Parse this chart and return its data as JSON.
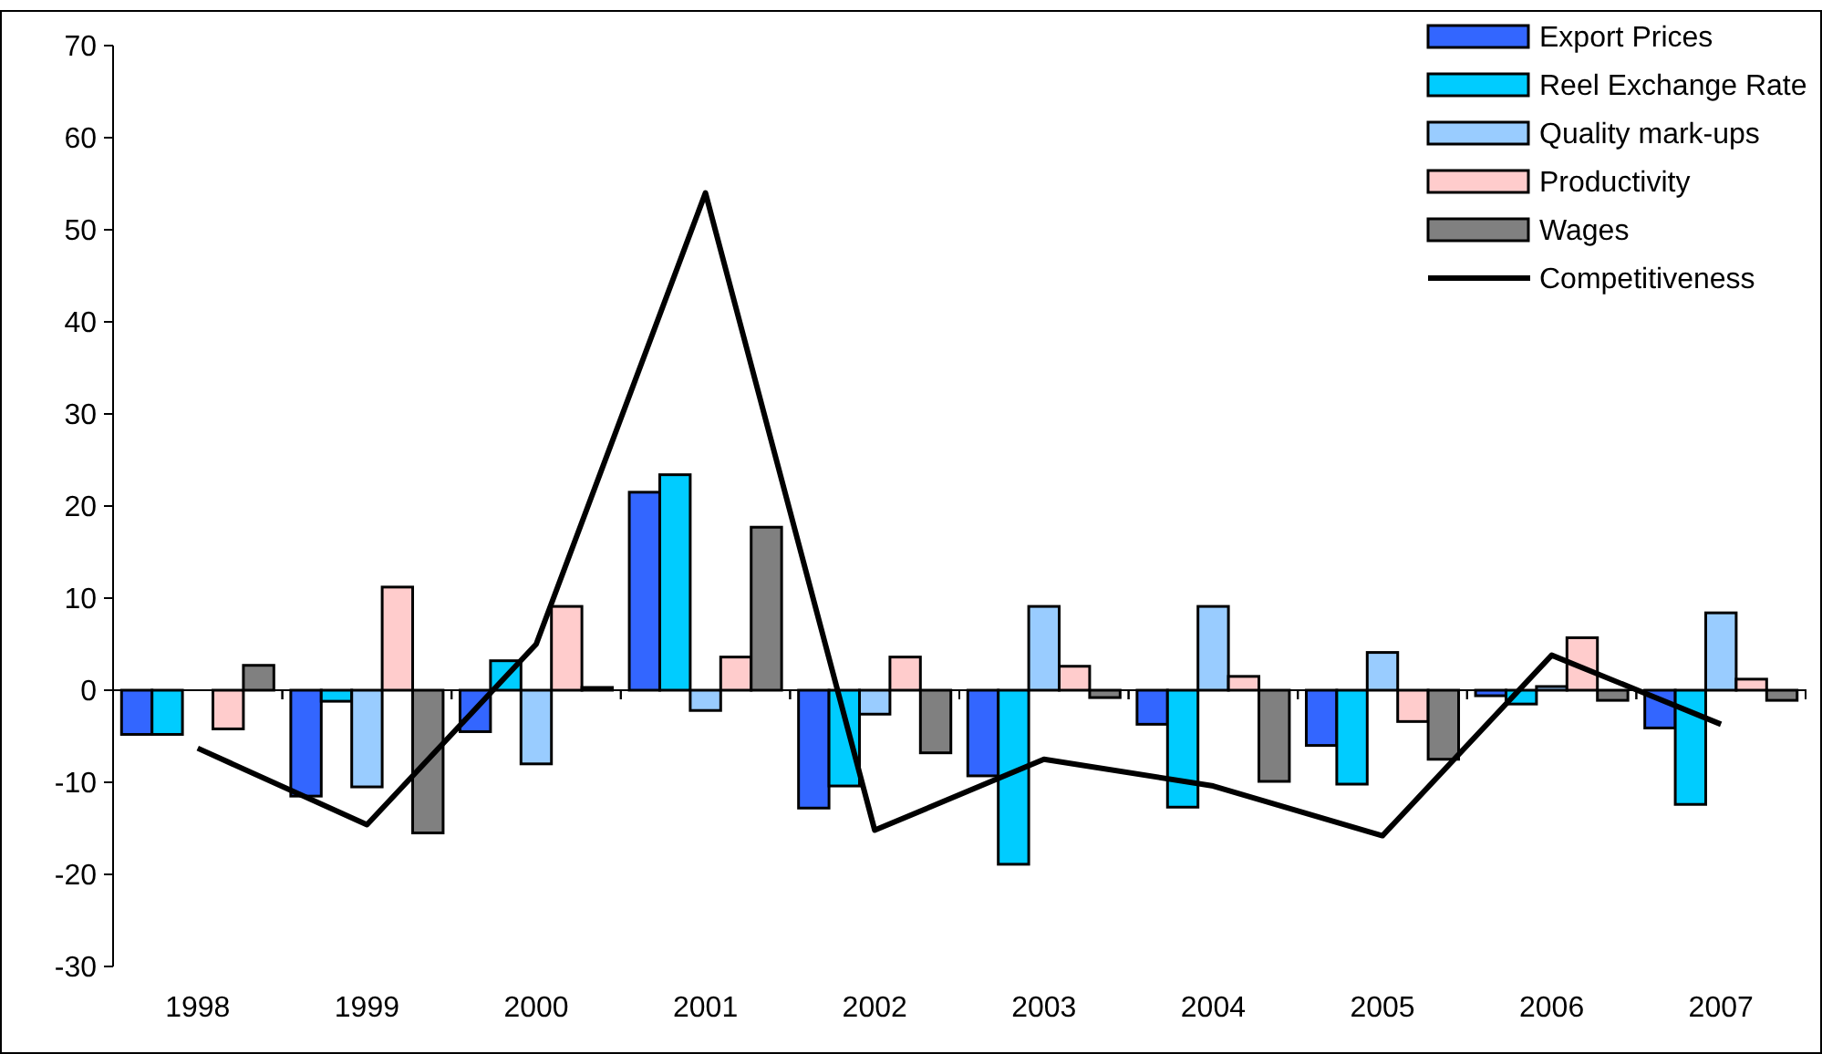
{
  "chart_data": {
    "type": "bar",
    "categories": [
      "1998",
      "1999",
      "2000",
      "2001",
      "2002",
      "2003",
      "2004",
      "2005",
      "2006",
      "2007"
    ],
    "series": [
      {
        "name": "Export Prices",
        "color": "#3366ff",
        "values": [
          -4.8,
          -11.5,
          -4.5,
          21.5,
          -12.8,
          -9.3,
          -3.7,
          -6,
          -0.6,
          -4.1
        ]
      },
      {
        "name": "Reel Exchange Rate",
        "color": "#00ccff",
        "values": [
          -4.8,
          -1.2,
          3.2,
          23.4,
          -10.4,
          -18.9,
          -12.7,
          -10.2,
          -1.5,
          -12.4
        ]
      },
      {
        "name": "Quality mark-ups",
        "color": "#99ccff",
        "values": [
          0,
          -10.5,
          -8,
          -2.2,
          -2.6,
          9.1,
          9.1,
          4.1,
          0.4,
          8.4
        ]
      },
      {
        "name": "Productivity",
        "color": "#ffcccc",
        "values": [
          -4.2,
          11.2,
          9.1,
          3.6,
          3.6,
          2.6,
          1.5,
          -3.4,
          5.7,
          1.2
        ]
      },
      {
        "name": "Wages",
        "color": "#808080",
        "values": [
          2.7,
          -15.5,
          0.3,
          17.7,
          -6.8,
          -0.8,
          -9.9,
          -7.5,
          -1.1,
          -1.1
        ]
      },
      {
        "name": "Competitiveness",
        "type": "line",
        "color": "#000000",
        "values": [
          -6.3,
          -14.6,
          5,
          54,
          -15.2,
          -7.5,
          -10.4,
          -15.8,
          3.8,
          -3.7
        ]
      }
    ],
    "ylim": [
      -30,
      70
    ],
    "yticks": [
      -30,
      -20,
      -10,
      0,
      10,
      20,
      30,
      40,
      50,
      60,
      70
    ],
    "grid": false,
    "legend": "top right",
    "marker": "none",
    "line_style": "solid"
  }
}
